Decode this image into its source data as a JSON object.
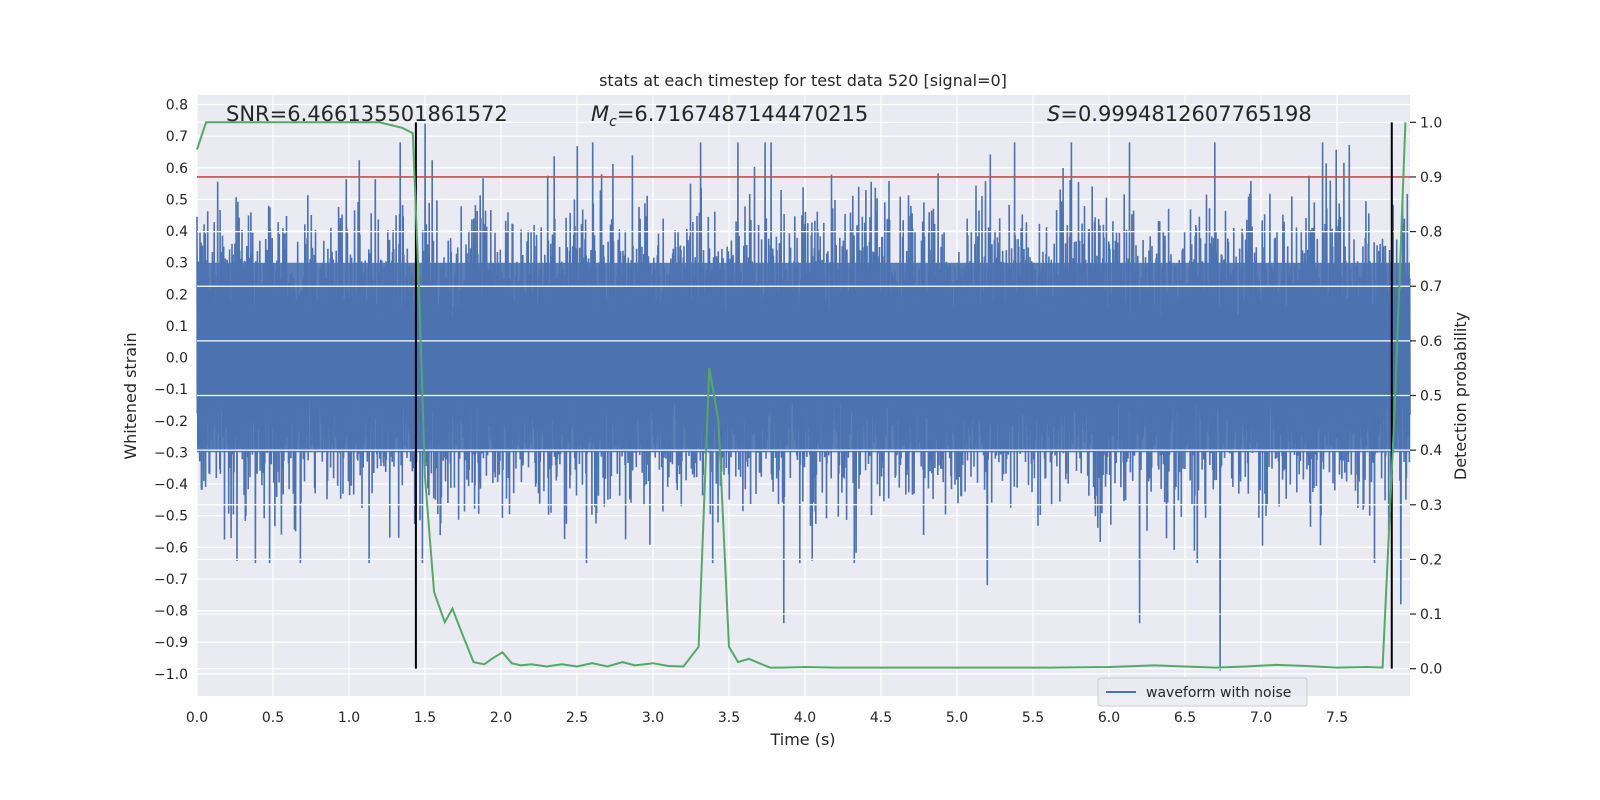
{
  "chart_data": {
    "type": "line",
    "title": "stats at each timestep for test data 520 [signal=0]",
    "xlabel": "Time (s)",
    "ylabel_left": "Whitened strain",
    "ylabel_right": "Detection probability",
    "xlim": [
      0.0,
      7.98
    ],
    "ylim_left": [
      -1.07,
      0.83
    ],
    "ylim_right": [
      -0.05,
      1.05
    ],
    "xticks": [
      0.0,
      0.5,
      1.0,
      1.5,
      2.0,
      2.5,
      3.0,
      3.5,
      4.0,
      4.5,
      5.0,
      5.5,
      6.0,
      6.5,
      7.0,
      7.5
    ],
    "xtick_labels": [
      "0.0",
      "0.5",
      "1.0",
      "1.5",
      "2.0",
      "2.5",
      "3.0",
      "3.5",
      "4.0",
      "4.5",
      "5.0",
      "5.5",
      "6.0",
      "6.5",
      "7.0",
      "7.5"
    ],
    "yticks_left": [
      -1.0,
      -0.9,
      -0.8,
      -0.7,
      -0.6,
      -0.5,
      -0.4,
      -0.3,
      -0.2,
      -0.1,
      0.0,
      0.1,
      0.2,
      0.3,
      0.4,
      0.5,
      0.6,
      0.7,
      0.8
    ],
    "ytick_labels_left": [
      "−1.0",
      "−0.9",
      "−0.8",
      "−0.7",
      "−0.6",
      "−0.5",
      "−0.4",
      "−0.3",
      "−0.2",
      "−0.1",
      "0.0",
      "0.1",
      "0.2",
      "0.3",
      "0.4",
      "0.5",
      "0.6",
      "0.7",
      "0.8"
    ],
    "yticks_right": [
      0.0,
      0.1,
      0.2,
      0.3,
      0.4,
      0.5,
      0.6,
      0.7,
      0.8,
      0.9,
      1.0
    ],
    "ytick_labels_right": [
      "0.0",
      "0.1",
      "0.2",
      "0.3",
      "0.4",
      "0.5",
      "0.6",
      "0.7",
      "0.8",
      "0.9",
      "1.0"
    ],
    "grid": true,
    "legend_position": "bottom-right",
    "annotations": [
      {
        "prefix": "SNR",
        "text": "=6.466135501861572"
      },
      {
        "prefix": "M",
        "subscript": "c",
        "text": "=6.7167487144470215"
      },
      {
        "prefix": "S",
        "text": "=0.9994812607765198"
      }
    ],
    "series": [
      {
        "name": "waveform with noise",
        "axis": "left",
        "kind": "noise_waveform",
        "band_low": -0.3,
        "band_high": 0.3,
        "typical_max": 0.68,
        "typical_min": -0.65,
        "extreme_spikes": [
          {
            "x": 1.5,
            "y": 0.74
          },
          {
            "x": 3.86,
            "y": -0.84
          },
          {
            "x": 6.2,
            "y": -0.84
          },
          {
            "x": 6.73,
            "y": -0.99
          },
          {
            "x": 5.2,
            "y": -0.72
          },
          {
            "x": 7.92,
            "y": -0.78
          }
        ],
        "color": "#4c72b0"
      },
      {
        "name": "Detection probability",
        "axis": "right",
        "color": "#55a868",
        "x": [
          0.0,
          0.06,
          0.15,
          0.3,
          0.5,
          0.8,
          1.0,
          1.2,
          1.35,
          1.42,
          1.46,
          1.5,
          1.56,
          1.63,
          1.68,
          1.75,
          1.82,
          1.89,
          1.95,
          2.01,
          2.07,
          2.13,
          2.2,
          2.3,
          2.4,
          2.5,
          2.6,
          2.7,
          2.8,
          2.88,
          3.0,
          3.1,
          3.2,
          3.3,
          3.37,
          3.43,
          3.5,
          3.56,
          3.63,
          3.7,
          3.77,
          3.85,
          4.0,
          4.2,
          4.4,
          4.6,
          4.8,
          5.0,
          5.3,
          5.6,
          6.0,
          6.3,
          6.5,
          6.7,
          6.9,
          7.1,
          7.3,
          7.5,
          7.7,
          7.8,
          7.88,
          7.95
        ],
        "y": [
          0.95,
          1.0,
          1.0,
          1.0,
          1.0,
          1.0,
          1.0,
          1.0,
          0.99,
          0.98,
          0.7,
          0.35,
          0.14,
          0.085,
          0.11,
          0.06,
          0.012,
          0.008,
          0.02,
          0.03,
          0.01,
          0.006,
          0.008,
          0.004,
          0.008,
          0.004,
          0.01,
          0.004,
          0.012,
          0.006,
          0.01,
          0.005,
          0.004,
          0.04,
          0.55,
          0.455,
          0.04,
          0.012,
          0.018,
          0.01,
          0.002,
          0.002,
          0.003,
          0.002,
          0.002,
          0.002,
          0.002,
          0.002,
          0.002,
          0.002,
          0.003,
          0.006,
          0.004,
          0.002,
          0.004,
          0.007,
          0.005,
          0.002,
          0.003,
          0.002,
          0.48,
          1.0
        ]
      },
      {
        "name": "threshold",
        "axis": "right",
        "color": "#c44e52",
        "y_value": 0.9
      }
    ],
    "vertical_lines": [
      {
        "x": 1.44,
        "ymin": 0.0,
        "ymax": 1.0,
        "color": "#000000"
      },
      {
        "x": 7.86,
        "ymin": 0.0,
        "ymax": 1.0,
        "color": "#000000"
      }
    ],
    "colors": {
      "plot_background": "#eaeaf2",
      "grid": "#ffffff",
      "waveform": "#4c72b0",
      "probability": "#55a868",
      "threshold": "#c44e52"
    }
  }
}
